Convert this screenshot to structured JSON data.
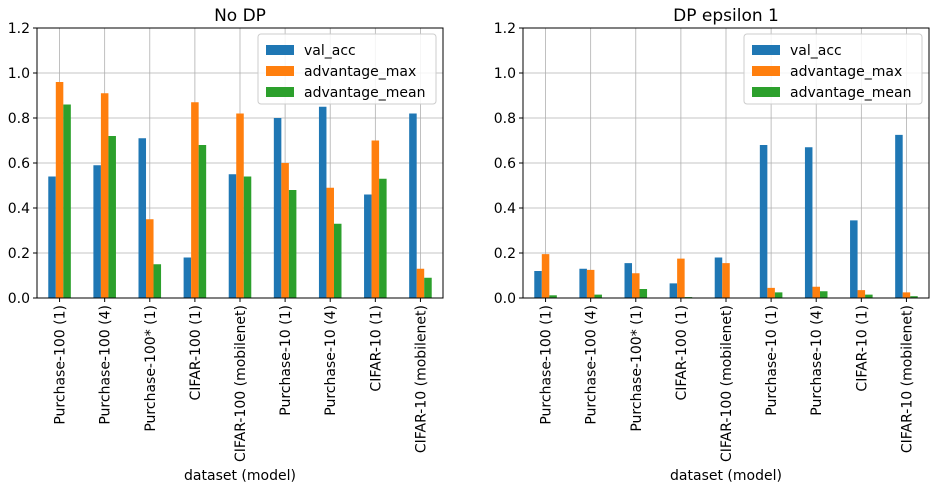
{
  "chart_data": [
    {
      "type": "bar",
      "title": "No DP",
      "xlabel": "dataset (model)",
      "ylabel": "",
      "ylim": [
        0,
        1.2
      ],
      "yticks": [
        "0.0",
        "0.2",
        "0.4",
        "0.6",
        "0.8",
        "1.0",
        "1.2"
      ],
      "grid": true,
      "legend_position": "top-right",
      "categories": [
        "Purchase-100 (1)",
        "Purchase-100 (4)",
        "Purchase-100* (1)",
        "CIFAR-100 (1)",
        "CIFAR-100 (mobilenet)",
        "Purchase-10 (1)",
        "Purchase-10 (4)",
        "CIFAR-10 (1)",
        "CIFAR-10 (mobilenet)"
      ],
      "series": [
        {
          "name": "val_acc",
          "color": "#1f77b4",
          "values": [
            0.54,
            0.59,
            0.71,
            0.18,
            0.55,
            0.8,
            0.85,
            0.46,
            0.82
          ]
        },
        {
          "name": "advantage_max",
          "color": "#ff7f0e",
          "values": [
            0.96,
            0.91,
            0.35,
            0.87,
            0.82,
            0.6,
            0.49,
            0.7,
            0.13
          ]
        },
        {
          "name": "advantage_mean",
          "color": "#2ca02c",
          "values": [
            0.86,
            0.72,
            0.15,
            0.68,
            0.54,
            0.48,
            0.33,
            0.53,
            0.09
          ]
        }
      ]
    },
    {
      "type": "bar",
      "title": "DP epsilon 1",
      "xlabel": "dataset (model)",
      "ylabel": "",
      "ylim": [
        0,
        1.2
      ],
      "yticks": [
        "0.0",
        "0.2",
        "0.4",
        "0.6",
        "0.8",
        "1.0",
        "1.2"
      ],
      "grid": true,
      "legend_position": "top-right",
      "categories": [
        "Purchase-100 (1)",
        "Purchase-100 (4)",
        "Purchase-100* (1)",
        "CIFAR-100 (1)",
        "CIFAR-100 (mobilenet)",
        "Purchase-10 (1)",
        "Purchase-10 (4)",
        "CIFAR-10 (1)",
        "CIFAR-10 (mobilenet)"
      ],
      "series": [
        {
          "name": "val_acc",
          "color": "#1f77b4",
          "values": [
            0.12,
            0.13,
            0.155,
            0.065,
            0.18,
            0.68,
            0.67,
            0.345,
            0.725
          ]
        },
        {
          "name": "advantage_max",
          "color": "#ff7f0e",
          "values": [
            0.195,
            0.125,
            0.11,
            0.175,
            0.155,
            0.045,
            0.05,
            0.035,
            0.025
          ]
        },
        {
          "name": "advantage_mean",
          "color": "#2ca02c",
          "values": [
            0.012,
            0.015,
            0.04,
            0.004,
            0.0,
            0.025,
            0.03,
            0.015,
            0.008
          ]
        }
      ]
    }
  ]
}
